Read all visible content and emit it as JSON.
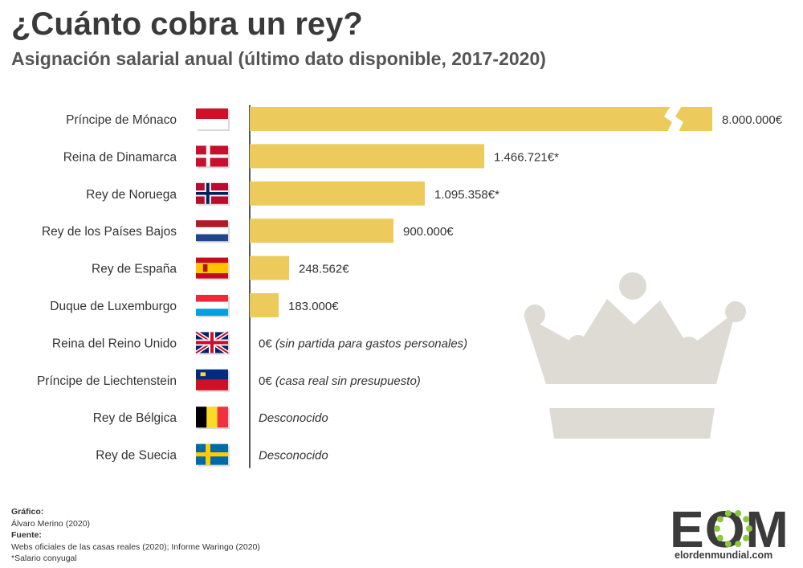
{
  "header": {
    "title": "¿Cuánto cobra un rey?",
    "subtitle": "Asignación salarial anual (último dato disponible, 2017-2020)"
  },
  "colors": {
    "bar": "#ecca5b",
    "axis": "#555555",
    "crown": "#dedbd5",
    "logo_green": "#8dc63f"
  },
  "chart_data": {
    "type": "bar",
    "orientation": "horizontal",
    "categories": [
      "Príncipe de Mónaco",
      "Reina de Dinamarca",
      "Rey de Noruega",
      "Rey de los Países Bajos",
      "Rey de España",
      "Duque de Luxemburgo",
      "Reina del Reino Unido",
      "Príncipe de Liechtenstein",
      "Rey de Bélgica",
      "Rey de Suecia"
    ],
    "values": [
      8000000,
      1466721,
      1095358,
      900000,
      248562,
      183000,
      0,
      0,
      null,
      null
    ],
    "value_labels": [
      "8.000.000€",
      "1.466.721€*",
      "1.095.358€*",
      "900.000€",
      "248.562€",
      "183.000€",
      "0€ (sin partida para gastos personales)",
      "0€ (casa real sin presupuesto)",
      "Desconocido",
      "Desconocido"
    ],
    "flags": [
      "monaco",
      "denmark",
      "norway",
      "netherlands",
      "spain",
      "luxembourg",
      "united-kingdom",
      "liechtenstein",
      "belgium",
      "sweden"
    ],
    "broken_axis": true,
    "unit": "€"
  },
  "credits": {
    "grafico_label": "Gráfico:",
    "grafico_value": "Álvaro Merino (2020)",
    "fuente_label": "Fuente:",
    "fuente_value": "Webs oficiales de las casas reales (2020); Informe Waringo (2020)",
    "note": "*Salario conyugal"
  },
  "logo": {
    "text": "EOM",
    "url": "elordenmundial.com"
  }
}
